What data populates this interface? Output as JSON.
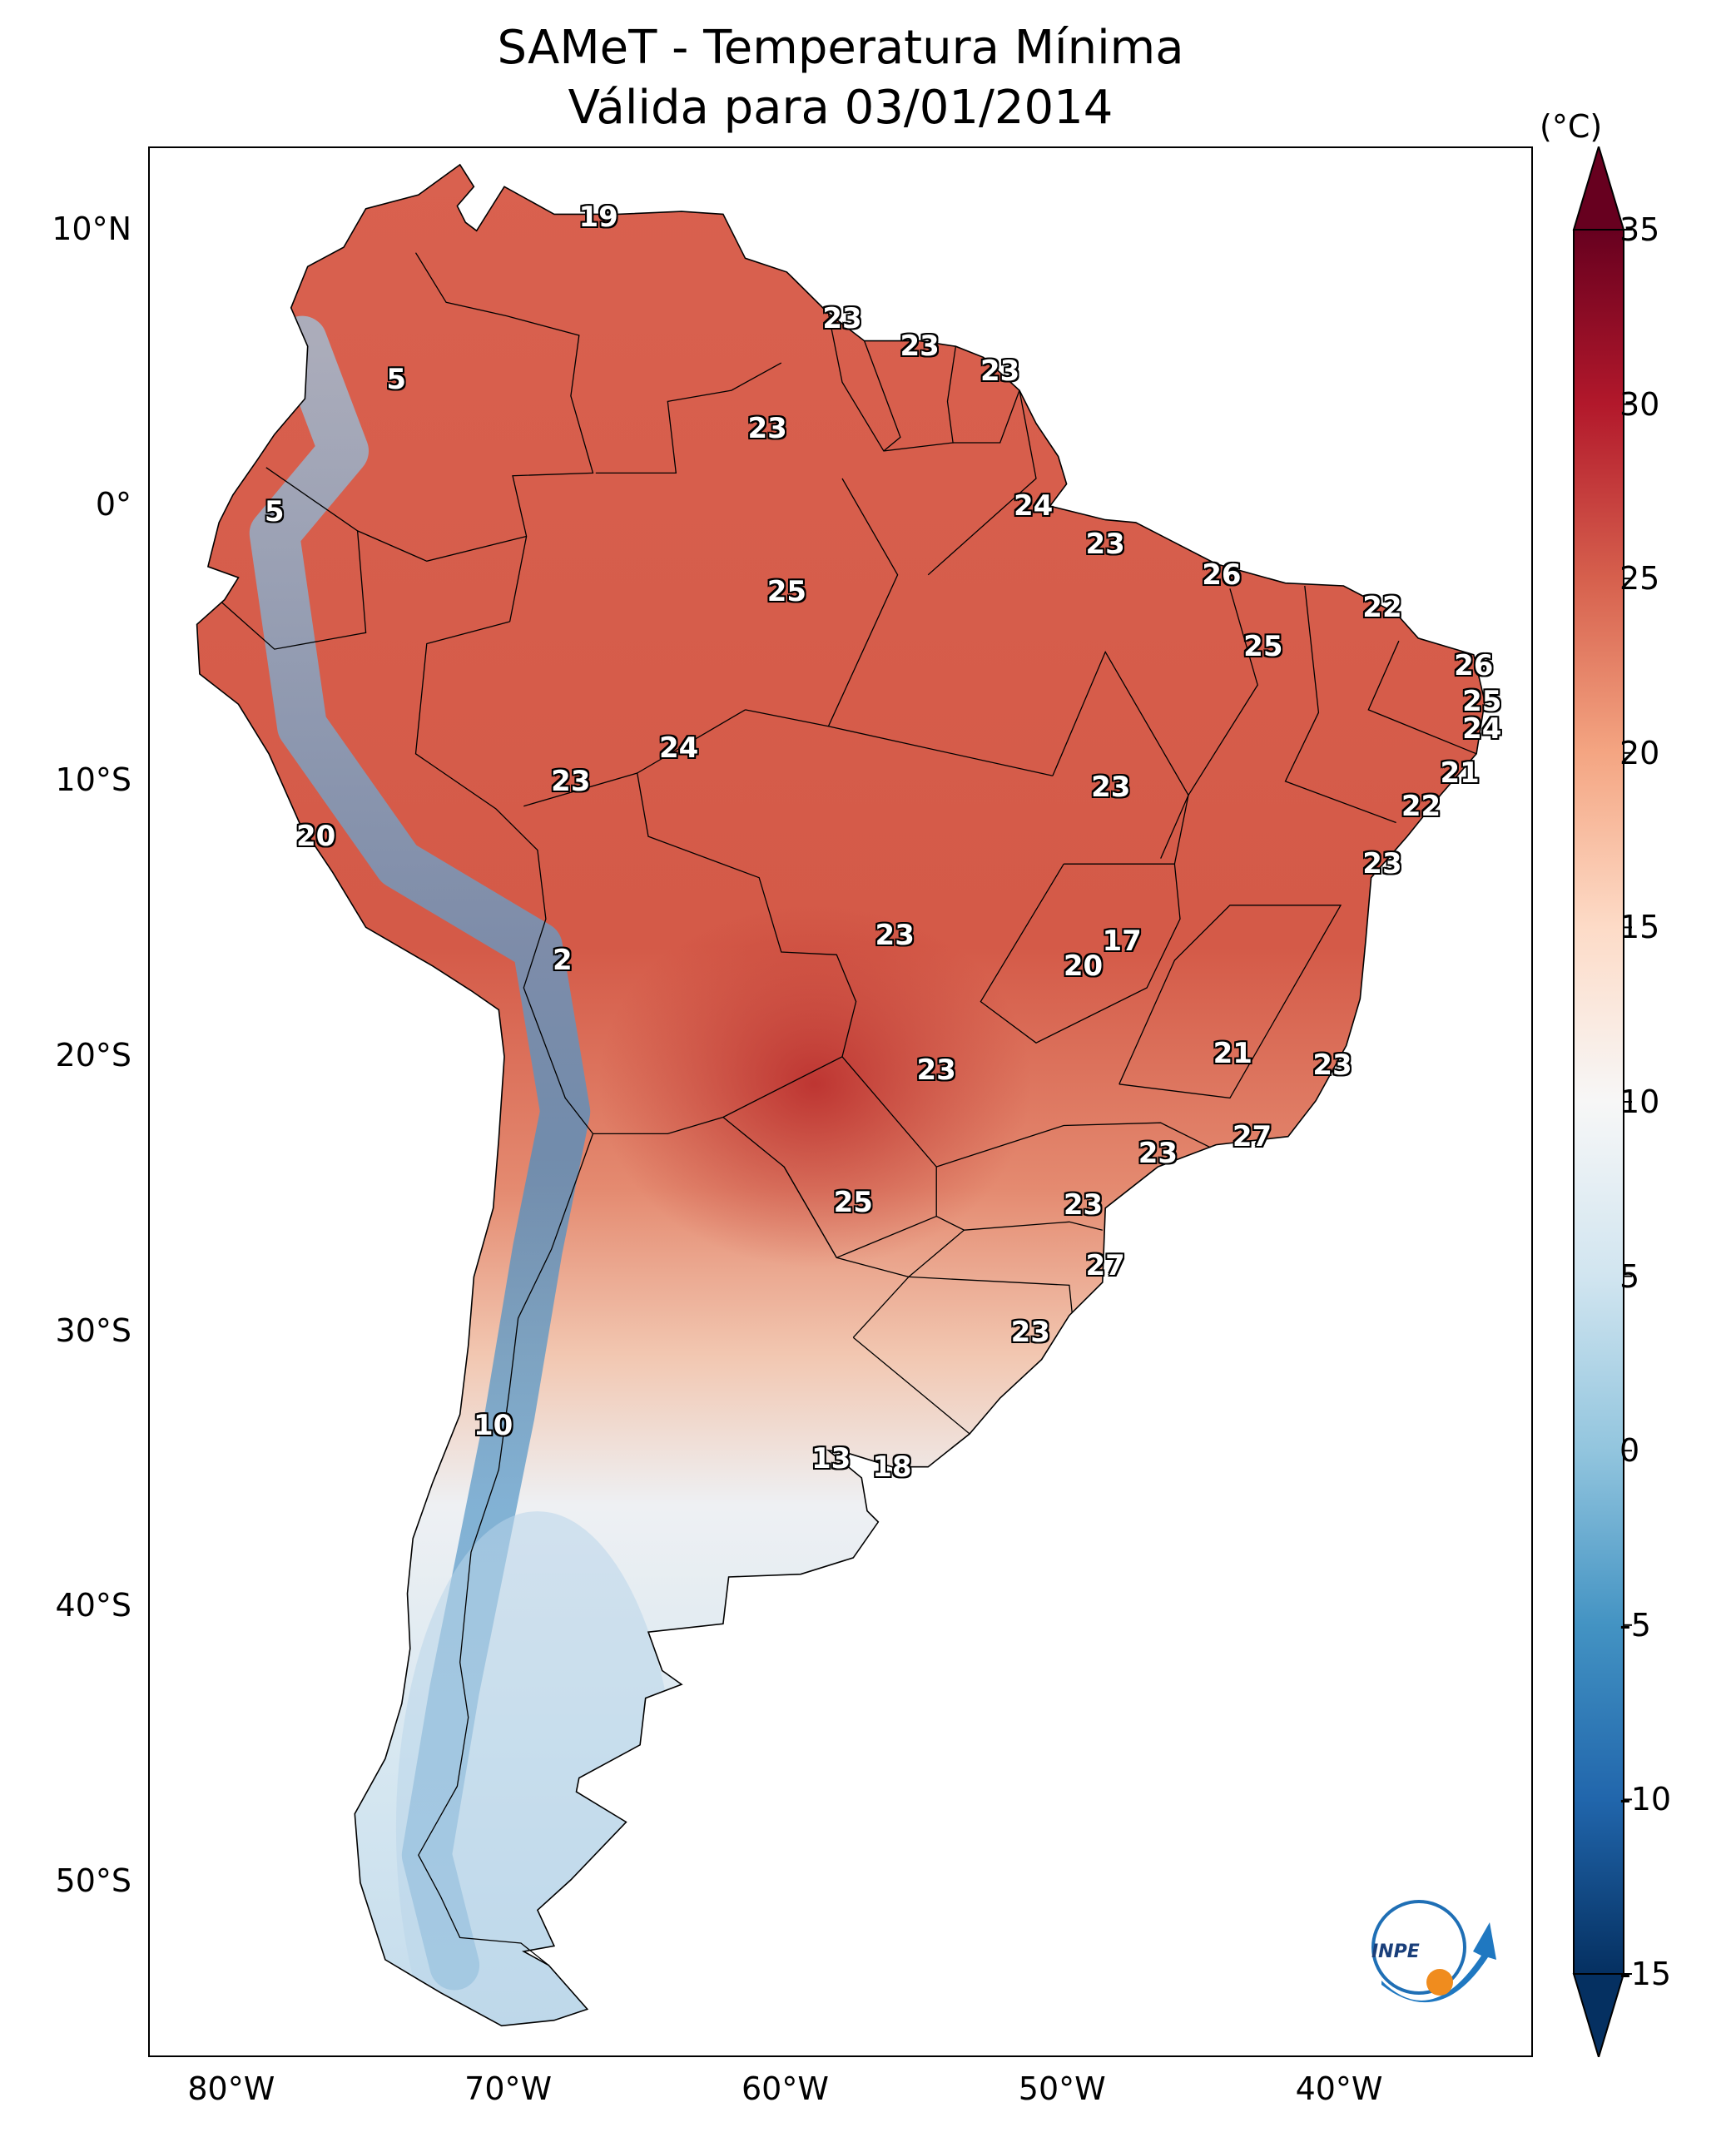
{
  "title_line1": "SAMeT - Temperatura Mínima",
  "title_line2": "Válida para 03/01/2014",
  "unit": "(°C)",
  "logo_text": "INPE",
  "axes": {
    "lat_labels": [
      "10°N",
      "0°",
      "10°S",
      "20°S",
      "30°S",
      "40°S",
      "50°S"
    ],
    "lon_labels": [
      "80°W",
      "70°W",
      "60°W",
      "50°W",
      "40°W"
    ]
  },
  "colorbar": {
    "ticks": [
      "35",
      "30",
      "25",
      "20",
      "15",
      "10",
      "5",
      "0",
      "-5",
      "-10",
      "-15"
    ],
    "vmin": -15,
    "vmax": 35,
    "colors": [
      "#053061",
      "#2166ac",
      "#4393c3",
      "#92c5de",
      "#d1e5f0",
      "#f7f7f7",
      "#fddbc7",
      "#f4a582",
      "#d6604d",
      "#b2182b",
      "#67001f"
    ]
  },
  "stations": [
    {
      "value": "19",
      "lon": -66.8,
      "lat": 10.5
    },
    {
      "value": "23",
      "lon": -58.0,
      "lat": 6.8
    },
    {
      "value": "23",
      "lon": -55.2,
      "lat": 5.8
    },
    {
      "value": "23",
      "lon": -52.3,
      "lat": 4.9
    },
    {
      "value": "5",
      "lon": -74.1,
      "lat": 4.6
    },
    {
      "value": "23",
      "lon": -60.7,
      "lat": 2.8
    },
    {
      "value": "5",
      "lon": -78.5,
      "lat": -0.2
    },
    {
      "value": "24",
      "lon": -51.1,
      "lat": 0.0
    },
    {
      "value": "23",
      "lon": -48.5,
      "lat": -1.4
    },
    {
      "value": "26",
      "lon": -44.3,
      "lat": -2.5
    },
    {
      "value": "25",
      "lon": -60.0,
      "lat": -3.1
    },
    {
      "value": "22",
      "lon": -38.5,
      "lat": -3.7
    },
    {
      "value": "25",
      "lon": -42.8,
      "lat": -5.1
    },
    {
      "value": "26",
      "lon": -35.2,
      "lat": -5.8
    },
    {
      "value": "25",
      "lon": -34.9,
      "lat": -7.1
    },
    {
      "value": "24",
      "lon": -34.9,
      "lat": -8.1
    },
    {
      "value": "24",
      "lon": -63.9,
      "lat": -8.8
    },
    {
      "value": "21",
      "lon": -35.7,
      "lat": -9.7
    },
    {
      "value": "23",
      "lon": -67.8,
      "lat": -10.0
    },
    {
      "value": "23",
      "lon": -48.3,
      "lat": -10.2
    },
    {
      "value": "22",
      "lon": -37.1,
      "lat": -10.9
    },
    {
      "value": "20",
      "lon": -77.0,
      "lat": -12.0
    },
    {
      "value": "23",
      "lon": -38.5,
      "lat": -13.0
    },
    {
      "value": "23",
      "lon": -56.1,
      "lat": -15.6
    },
    {
      "value": "17",
      "lon": -47.9,
      "lat": -15.8
    },
    {
      "value": "2",
      "lon": -68.1,
      "lat": -16.5
    },
    {
      "value": "20",
      "lon": -49.3,
      "lat": -16.7
    },
    {
      "value": "21",
      "lon": -43.9,
      "lat": -19.9
    },
    {
      "value": "23",
      "lon": -40.3,
      "lat": -20.3
    },
    {
      "value": "23",
      "lon": -54.6,
      "lat": -20.5
    },
    {
      "value": "27",
      "lon": -43.2,
      "lat": -22.9
    },
    {
      "value": "23",
      "lon": -46.6,
      "lat": -23.5
    },
    {
      "value": "25",
      "lon": -57.6,
      "lat": -25.3
    },
    {
      "value": "23",
      "lon": -49.3,
      "lat": -25.4
    },
    {
      "value": "27",
      "lon": -48.5,
      "lat": -27.6
    },
    {
      "value": "23",
      "lon": -51.2,
      "lat": -30.0
    },
    {
      "value": "10",
      "lon": -70.6,
      "lat": -33.4
    },
    {
      "value": "13",
      "lon": -58.4,
      "lat": -34.6
    },
    {
      "value": "18",
      "lon": -56.2,
      "lat": -34.9
    }
  ]
}
